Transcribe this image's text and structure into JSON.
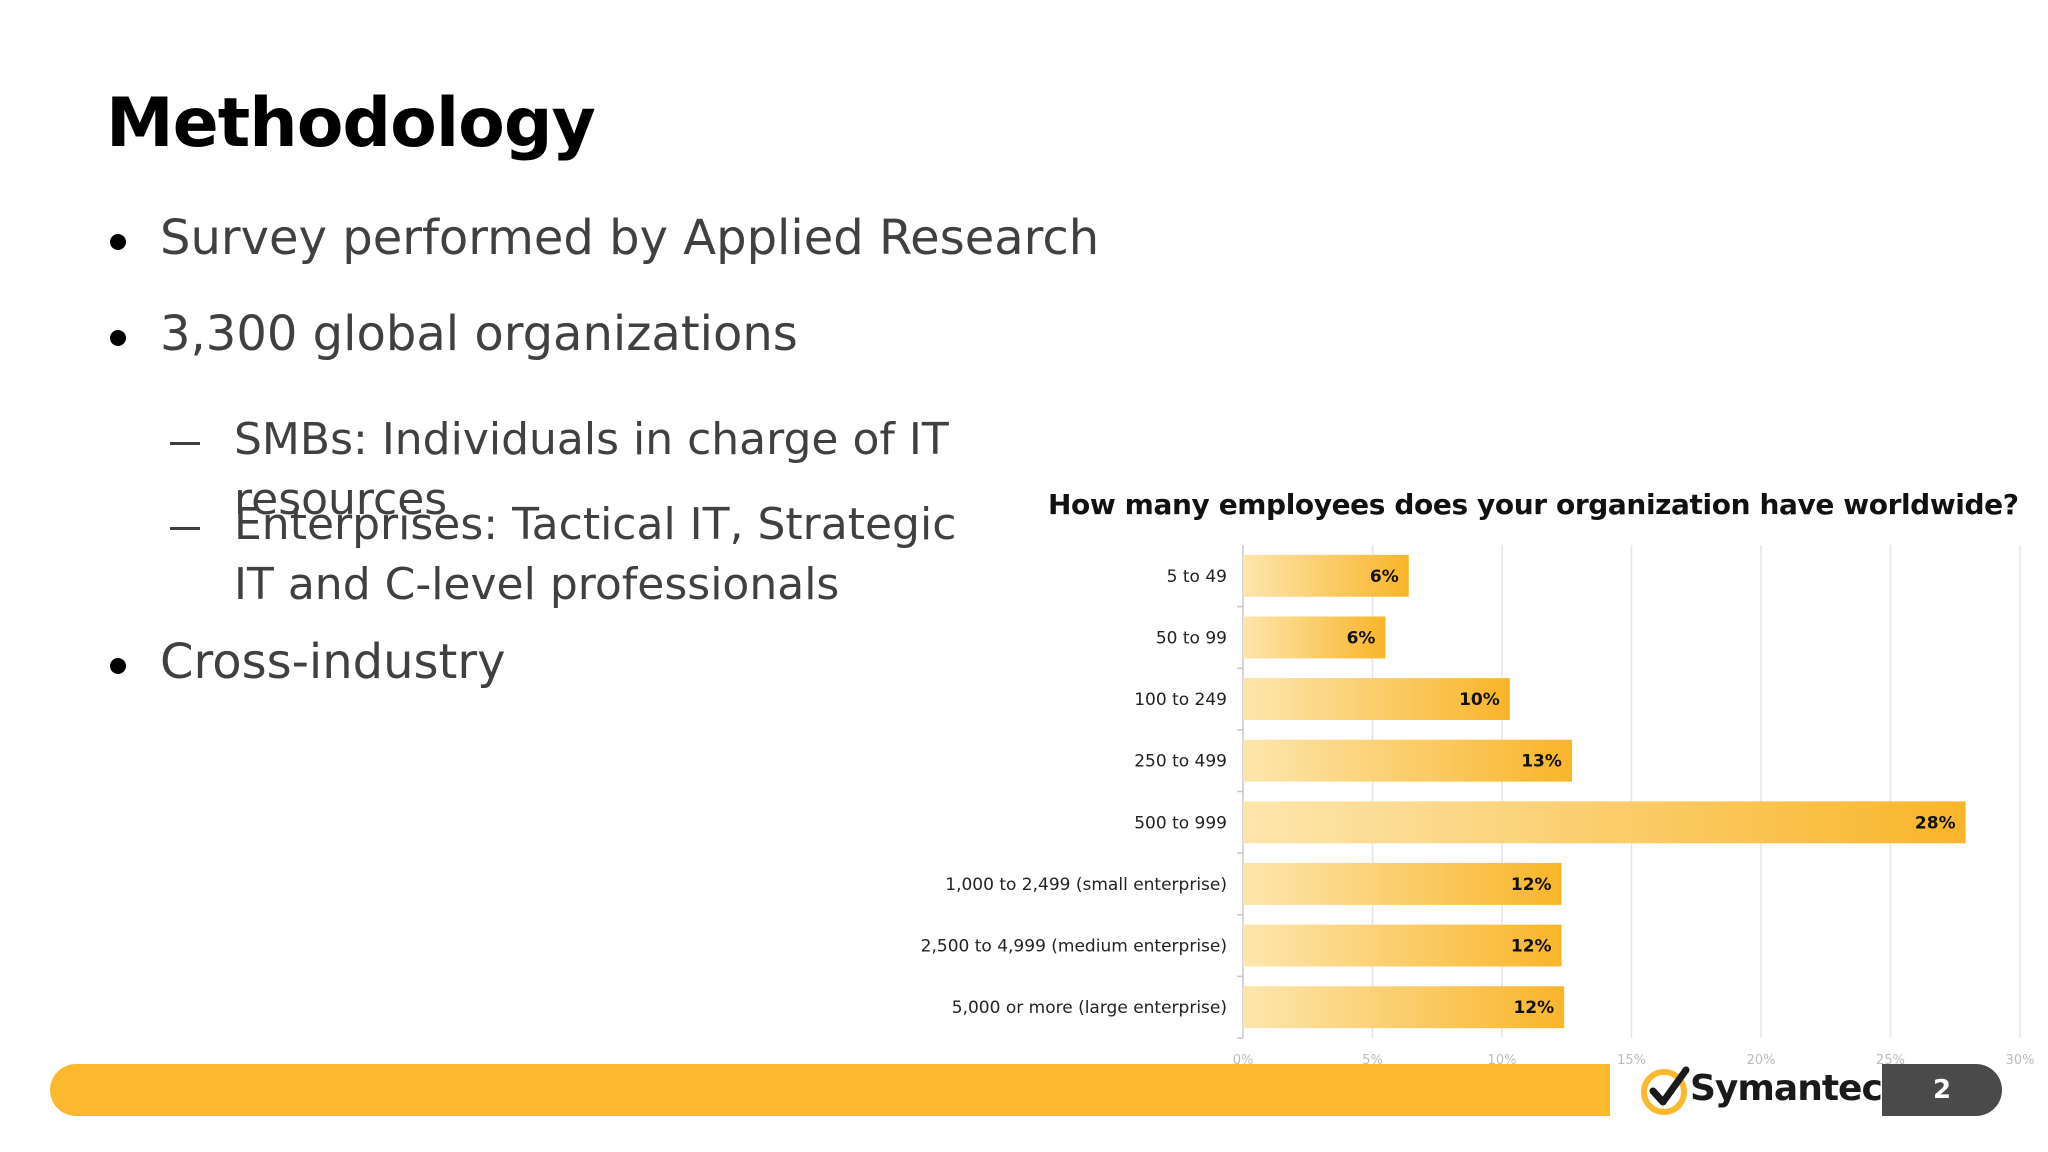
{
  "slide": {
    "title": "Methodology",
    "bullets": [
      {
        "level": 1,
        "text": "Survey performed by Applied Research"
      },
      {
        "level": 1,
        "text": "3,300 global organizations"
      },
      {
        "level": 2,
        "text": "SMBs: Individuals in charge of IT resources"
      },
      {
        "level": 2,
        "text": "Enterprises: Tactical IT, Strategic IT and C-level professionals"
      },
      {
        "level": 1,
        "text": "Cross-industry"
      }
    ],
    "page_number": "2",
    "logo_text": "Symantec."
  },
  "colors": {
    "accent": "#fdb92e",
    "bar_start": "#fde2a4",
    "bar_end": "#f9b52a",
    "page_box": "#4a4a4a"
  },
  "chart_data": {
    "type": "bar",
    "orientation": "horizontal",
    "title": "How many employees does your organization have worldwide?",
    "categories": [
      "5 to 49",
      "50 to 99",
      "100 to 249",
      "250 to 499",
      "500 to 999",
      "1,000 to 2,499 (small enterprise)",
      "2,500 to 4,999 (medium enterprise)",
      "5,000 or more (large enterprise)"
    ],
    "values": [
      6.4,
      5.5,
      10.3,
      12.7,
      27.9,
      12.3,
      12.3,
      12.4
    ],
    "value_labels": [
      "6%",
      "6%",
      "10%",
      "13%",
      "28%",
      "12%",
      "12%",
      "12%"
    ],
    "xlim": [
      0,
      30
    ],
    "xticks": [
      "0%",
      "5%",
      "10%",
      "15%",
      "20%",
      "25%",
      "30%"
    ],
    "grid": true,
    "legend": "none"
  }
}
